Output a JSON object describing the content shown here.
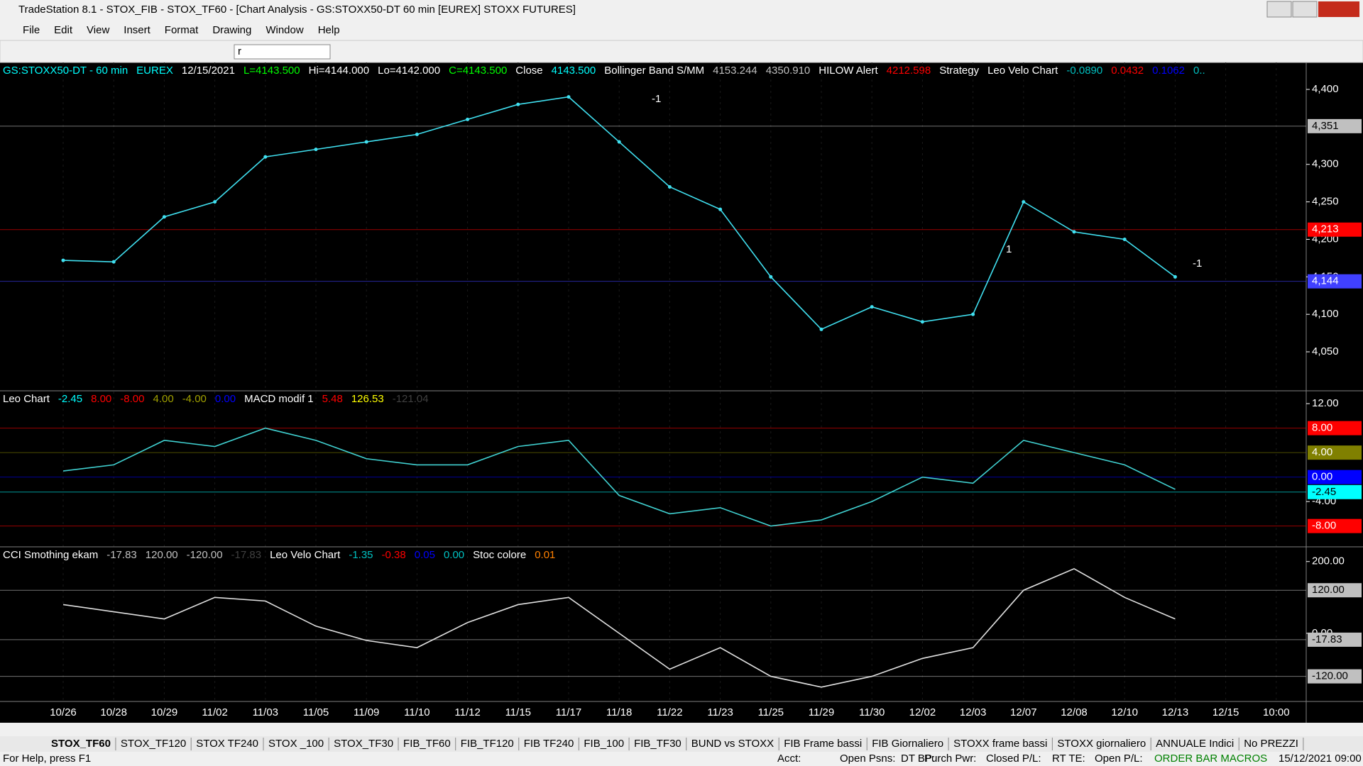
{
  "window": {
    "title": "TradeStation 8.1 - STOX_FIB - STOX_TF60 - [Chart Analysis - GS:STOXX50-DT  60 min  [EUREX] STOXX FUTURES]",
    "menu": [
      "File",
      "Edit",
      "View",
      "Insert",
      "Format",
      "Drawing",
      "Window",
      "Help"
    ],
    "symbol_box": "r"
  },
  "dates": [
    "10/26",
    "10/28",
    "10/29",
    "11/02",
    "11/03",
    "11/05",
    "11/09",
    "11/10",
    "11/12",
    "11/15",
    "11/17",
    "11/18",
    "11/22",
    "11/23",
    "11/25",
    "11/29",
    "11/30",
    "12/02",
    "12/03",
    "12/07",
    "12/08",
    "12/10",
    "12/13",
    "12/15",
    "10:00"
  ],
  "price_pane": {
    "header": [
      {
        "text": "GS:STOXX50-DT - 60 min",
        "color": "#00ffff"
      },
      {
        "text": "EUREX",
        "color": "#00ffff"
      },
      {
        "text": "12/15/2021",
        "color": "#ffffff"
      },
      {
        "text": "L=4143.500",
        "color": "#00ff00"
      },
      {
        "text": "Hi=4144.000",
        "color": "#ffffff"
      },
      {
        "text": "Lo=4142.000",
        "color": "#ffffff"
      },
      {
        "text": "C=4143.500",
        "color": "#00ff00"
      },
      {
        "text": "Close",
        "color": "#ffffff"
      },
      {
        "text": "4143.500",
        "color": "#00ffff"
      },
      {
        "text": "Bollinger Band S/MM",
        "color": "#ffffff"
      },
      {
        "text": "4153.244",
        "color": "#c0c0c0"
      },
      {
        "text": "4350.910",
        "color": "#c0c0c0"
      },
      {
        "text": "HILOW Alert",
        "color": "#ffffff"
      },
      {
        "text": "4212.598",
        "color": "#ff0000"
      },
      {
        "text": "Strategy",
        "color": "#ffffff"
      },
      {
        "text": "Leo Velo Chart",
        "color": "#ffffff"
      },
      {
        "text": "-0.0890",
        "color": "#00c0c0"
      },
      {
        "text": "0.0432",
        "color": "#ff0000"
      },
      {
        "text": "0.1062",
        "color": "#0000ff"
      },
      {
        "text": "0..",
        "color": "#00c0c0"
      }
    ],
    "ylim": [
      3998,
      4436
    ],
    "yticks": [
      {
        "value": 4400,
        "label": "4,400"
      },
      {
        "value": 4300,
        "label": "4,300"
      },
      {
        "value": 4250,
        "label": "4,250"
      },
      {
        "value": 4200,
        "label": "4,200"
      },
      {
        "value": 4150,
        "label": "4,150"
      },
      {
        "value": 4100,
        "label": "4,100"
      },
      {
        "value": 4050,
        "label": "4,050"
      }
    ],
    "markers": [
      {
        "value": 4351,
        "label": "4,351",
        "color": "#c0c0c0",
        "text_color": "#000000"
      },
      {
        "value": 4213,
        "label": "4,213",
        "color": "#ff0000",
        "text_color": "#ffffff"
      },
      {
        "value": 4144,
        "label": "4,144",
        "color": "#4040ff",
        "text_color": "#ffffff"
      }
    ],
    "close_color": "#40e0f0",
    "close": [
      4172,
      4170,
      4230,
      4250,
      4310,
      4320,
      4330,
      4340,
      4360,
      4380,
      4390,
      4330,
      4270,
      4240,
      4150,
      4080,
      4110,
      4090,
      4100,
      4250,
      4210,
      4200,
      4150,
      null,
      null
    ],
    "annotations": [
      "-1",
      "1",
      "-1"
    ]
  },
  "leo_pane": {
    "header": [
      {
        "text": "Leo Chart",
        "color": "#ffffff"
      },
      {
        "text": "-2.45",
        "color": "#00ffff"
      },
      {
        "text": "8.00",
        "color": "#ff0000"
      },
      {
        "text": "-8.00",
        "color": "#ff0000"
      },
      {
        "text": "4.00",
        "color": "#a0a000"
      },
      {
        "text": "-4.00",
        "color": "#a0a000"
      },
      {
        "text": "0.00",
        "color": "#0000ff"
      },
      {
        "text": "MACD modif 1",
        "color": "#ffffff"
      },
      {
        "text": "5.48",
        "color": "#ff0000"
      },
      {
        "text": "126.53",
        "color": "#ffff00"
      },
      {
        "text": "-121.04",
        "color": "#404040"
      }
    ],
    "ylim": [
      -11.4,
      14.1
    ],
    "yticks": [
      {
        "value": 12,
        "label": "12.00"
      },
      {
        "value": -4,
        "label": "-4.00"
      }
    ],
    "markers": [
      {
        "value": 8,
        "label": "8.00",
        "color": "#ff0000",
        "text_color": "#ffffff"
      },
      {
        "value": 4,
        "label": "4.00",
        "color": "#808000",
        "text_color": "#ffffff"
      },
      {
        "value": 0,
        "label": "0.00",
        "color": "#0000ff",
        "text_color": "#ffffff"
      },
      {
        "value": -2.45,
        "label": "-2.45",
        "color": "#00ffff",
        "text_color": "#000000"
      },
      {
        "value": -8,
        "label": "-8.00",
        "color": "#ff0000",
        "text_color": "#ffffff"
      }
    ],
    "line_color": "#40d0d0",
    "line": [
      1,
      2,
      6,
      5,
      8,
      6,
      3,
      2,
      2,
      5,
      6,
      -3,
      -6,
      -5,
      -8,
      -7,
      -4,
      0,
      -1,
      6,
      4,
      2,
      -2,
      null,
      null
    ]
  },
  "cci_pane": {
    "header": [
      {
        "text": "CCI Smothing ekam",
        "color": "#ffffff"
      },
      {
        "text": "-17.83",
        "color": "#c0c0c0"
      },
      {
        "text": "120.00",
        "color": "#c0c0c0"
      },
      {
        "text": "-120.00",
        "color": "#c0c0c0"
      },
      {
        "text": "-17.83",
        "color": "#404040"
      },
      {
        "text": "Leo Velo Chart",
        "color": "#ffffff"
      },
      {
        "text": "-1.35",
        "color": "#00c0c0"
      },
      {
        "text": "-0.38",
        "color": "#ff0000"
      },
      {
        "text": "0.05",
        "color": "#0000ff"
      },
      {
        "text": "0.00",
        "color": "#00c0c0"
      },
      {
        "text": "Stoc colore",
        "color": "#ffffff"
      },
      {
        "text": "0.01",
        "color": "#ff8000"
      }
    ],
    "ylim": [
      -190,
      241
    ],
    "yticks": [
      {
        "value": 200,
        "label": "200.00"
      },
      {
        "value": 0,
        "label": "0.00"
      }
    ],
    "markers": [
      {
        "value": 120,
        "label": "120.00",
        "color": "#c0c0c0",
        "text_color": "#000000"
      },
      {
        "value": -17.83,
        "label": "-17.83",
        "color": "#c0c0c0",
        "text_color": "#000000"
      },
      {
        "value": -120,
        "label": "-120.00",
        "color": "#c0c0c0",
        "text_color": "#000000"
      }
    ],
    "line_color": "#e0e0e0",
    "line": [
      80,
      60,
      40,
      100,
      90,
      20,
      -20,
      -40,
      30,
      80,
      100,
      0,
      -100,
      -40,
      -120,
      -150,
      -120,
      -70,
      -40,
      120,
      180,
      100,
      40,
      null,
      null
    ]
  },
  "tabs": [
    "STOX_TF60",
    "STOX_TF120",
    "STOX TF240",
    "STOX _100",
    "STOX_TF30",
    "FIB_TF60",
    "FIB_TF120",
    "FIB TF240",
    "FIB_100",
    "FIB_TF30",
    "BUND vs STOXX",
    "FIB Frame bassi",
    "FIB Giornaliero",
    "STOXX frame bassi",
    "STOXX giornaliero",
    "ANNUALE Indici",
    "No PREZZI"
  ],
  "status": {
    "help": "For Help, press F1",
    "fields": [
      "Acct:",
      "Open Psns:",
      "DT BP:",
      "Purch Pwr:",
      "Closed P/L:",
      "RT TE:",
      "Open P/L:"
    ],
    "macros": "ORDER BAR MACROS",
    "datetime": "15/12/2021 09:00"
  }
}
